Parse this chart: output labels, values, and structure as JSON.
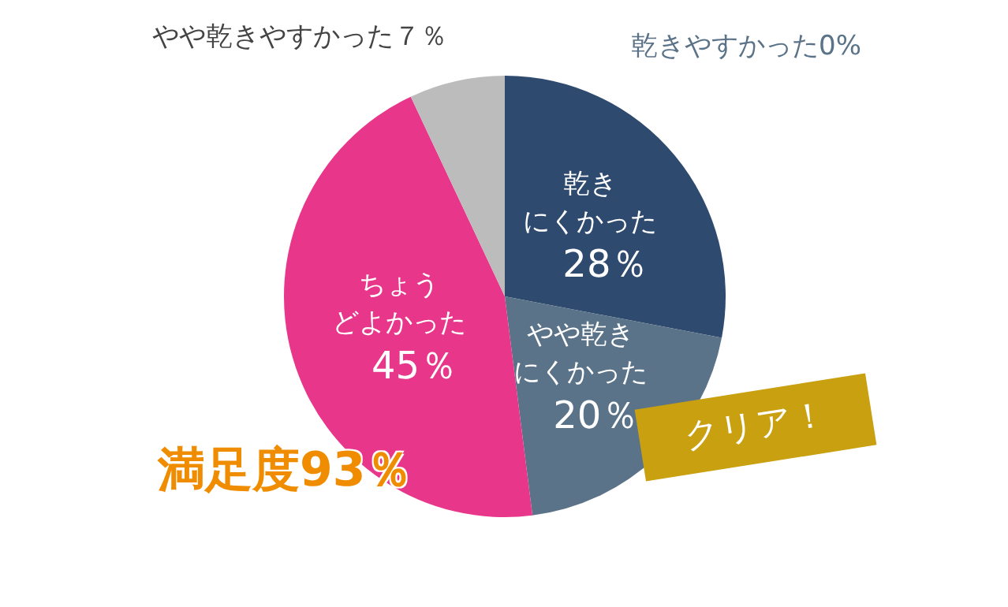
{
  "chart_data": {
    "type": "pie",
    "categories": [
      "乾きにくかった",
      "やや乾きにくかった",
      "ちょうどよかった",
      "やや乾きやすかった",
      "乾きやすかった"
    ],
    "values": [
      28,
      20,
      45,
      7,
      0
    ],
    "colors": [
      "#2e4a6e",
      "#5b7388",
      "#e8378b",
      "#bcbcbc",
      "#8aa0b0"
    ],
    "value_labels": [
      "28％",
      "20％",
      "45％",
      "７％",
      "0%"
    ],
    "annotations": [
      "満足度93％",
      "クリア！"
    ],
    "legend": false
  }
}
